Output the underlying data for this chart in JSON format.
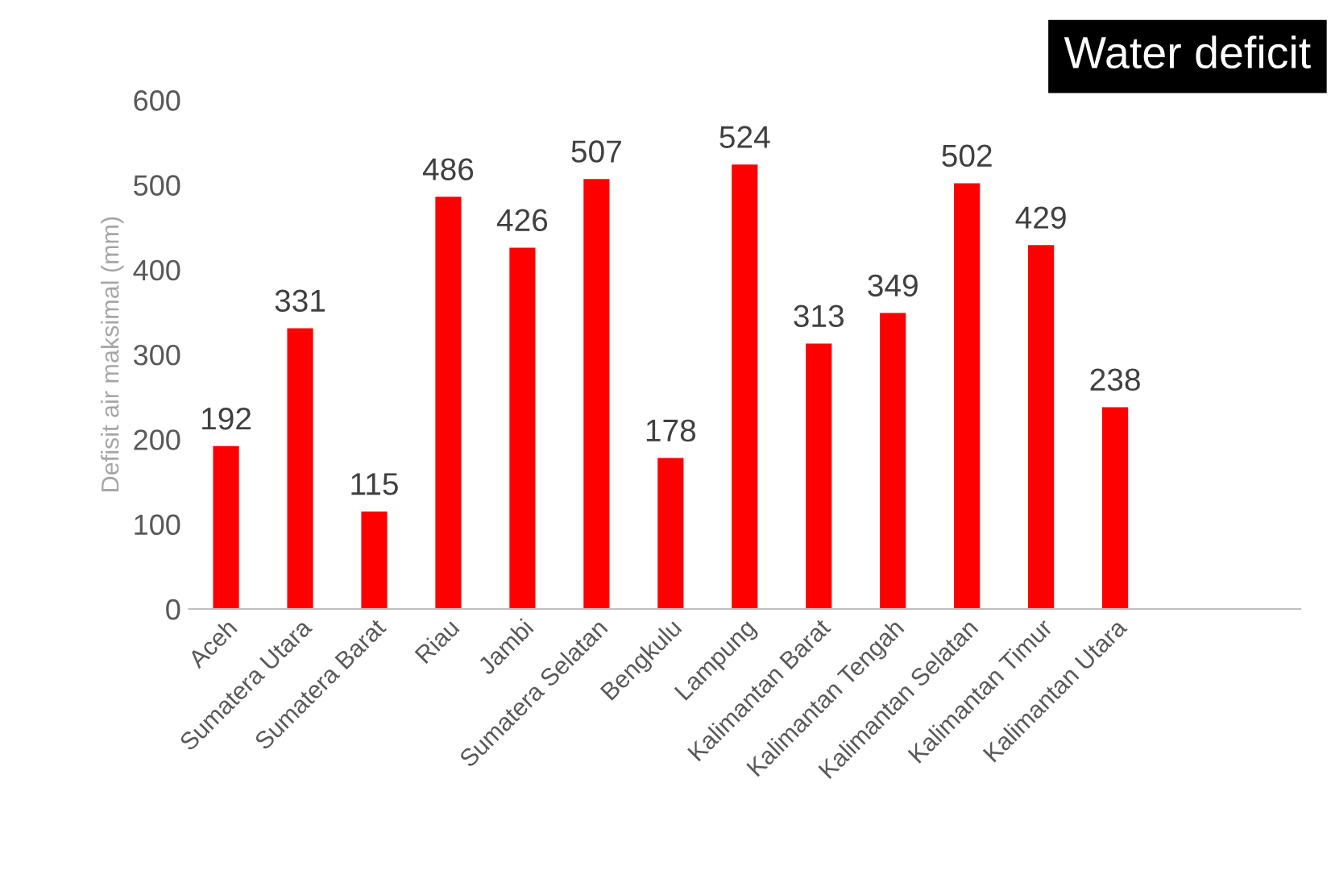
{
  "chart_data": {
    "type": "bar",
    "title": "Water deficit",
    "ylabel": "Defisit air maksimal (mm)",
    "categories": [
      "Aceh",
      "Sumatera Utara",
      "Sumatera Barat",
      "Riau",
      "Jambi",
      "Sumatera Selatan",
      "Bengkulu",
      "Lampung",
      "Kalimantan Barat",
      "Kalimantan Tengah",
      "Kalimantan Selatan",
      "Kalimantan Timur",
      "Kalimantan Utara",
      null,
      null
    ],
    "values": [
      192,
      331,
      115,
      486,
      426,
      507,
      178,
      524,
      313,
      349,
      502,
      429,
      238,
      null,
      null
    ],
    "color": "#ff0000",
    "ylim": [
      0,
      600
    ],
    "yticks": [
      0,
      100,
      200,
      300,
      400,
      500,
      600
    ],
    "grid": false,
    "data_labels": true
  }
}
